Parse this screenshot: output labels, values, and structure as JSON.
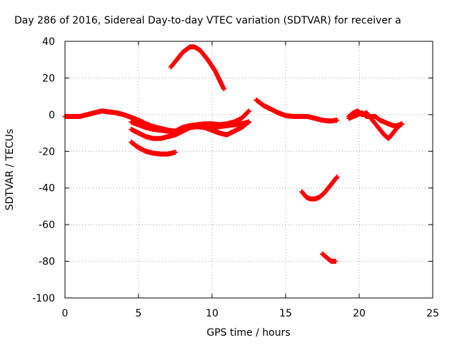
{
  "chart_data": {
    "type": "scatter",
    "title": "Day 286 of 2016, Sidereal Day-to-day VTEC variation (SDTVAR) for receiver a",
    "xlabel": "GPS time / hours",
    "ylabel": "SDTVAR / TECUs",
    "xlim": [
      0,
      25
    ],
    "ylim": [
      -100,
      40
    ],
    "xticks": [
      0,
      5,
      10,
      15,
      20,
      25
    ],
    "yticks": [
      -100,
      -80,
      -60,
      -40,
      -20,
      0,
      20,
      40
    ],
    "grid": true,
    "marker": "plus",
    "color": "#ff0000",
    "series": [
      {
        "x": [
          0,
          0.5,
          1,
          1.5,
          2,
          2.5,
          3,
          3.5,
          4,
          4.5,
          5,
          5.5,
          6,
          6.5,
          7,
          7.5,
          8,
          8.5,
          9,
          9.5,
          10,
          10.5,
          11,
          11.5,
          12,
          12.5
        ],
        "y": [
          -1,
          -1,
          -1,
          0,
          1,
          2,
          1.5,
          1,
          0,
          -1.5,
          -3,
          -5,
          -6.5,
          -7.5,
          -8.5,
          -9,
          -7,
          -6,
          -5.5,
          -5,
          -5,
          -5.5,
          -5,
          -4,
          -2,
          2
        ]
      },
      {
        "x": [
          4.5,
          5,
          5.5,
          6,
          6.5,
          7,
          7.5,
          8,
          8.5,
          9,
          9.5,
          10,
          10.5,
          11,
          11.5,
          12,
          12.5
        ],
        "y": [
          -8,
          -10,
          -12,
          -13,
          -13,
          -12,
          -11,
          -9,
          -7,
          -6,
          -6.5,
          -7,
          -6.5,
          -6,
          -5.5,
          -5,
          -4
        ]
      },
      {
        "x": [
          4.5,
          5,
          5.5,
          6,
          6.5,
          7,
          7.5,
          8,
          8.5,
          9,
          9.5,
          10,
          10.5,
          11,
          11.5,
          12,
          12.5
        ],
        "y": [
          -4,
          -5.5,
          -7,
          -8,
          -8.5,
          -9,
          -9,
          -8,
          -7,
          -6.5,
          -7,
          -8.5,
          -10,
          -11,
          -9,
          -7,
          -4
        ]
      },
      {
        "x": [
          4.5,
          5,
          5.5,
          6,
          6.5,
          7,
          7.5
        ],
        "y": [
          -15,
          -18,
          -20,
          -21,
          -21.5,
          -21.5,
          -20.5
        ]
      },
      {
        "x": [
          7.2,
          7.5,
          8,
          8.5,
          8.8,
          9.2,
          9.7,
          10.2,
          10.5,
          10.8
        ],
        "y": [
          26,
          29,
          34,
          37,
          37,
          35,
          30,
          24,
          19,
          14
        ]
      },
      {
        "x": [
          13,
          13.5,
          14,
          14.5,
          15,
          15.5,
          16,
          16.5,
          17,
          17.5,
          18,
          18.5
        ],
        "y": [
          8,
          5,
          3,
          1,
          -0.5,
          -1,
          -1,
          -1,
          -2,
          -3,
          -3.5,
          -3
        ]
      },
      {
        "x": [
          19.3,
          19.6,
          19.9,
          20.2,
          20.5,
          20.8,
          21.1,
          21.4,
          21.7,
          22,
          22.3,
          22.6,
          22.9
        ],
        "y": [
          -1,
          1,
          2,
          0,
          1,
          -2,
          -5,
          -8,
          -11,
          -13,
          -10,
          -7,
          -5
        ]
      },
      {
        "x": [
          19.3,
          19.6,
          19.9,
          20.2,
          20.5,
          20.8,
          21.1,
          21.4,
          21.7,
          22,
          22.3,
          22.6,
          22.9
        ],
        "y": [
          -2,
          -1,
          0,
          1,
          -1,
          -1,
          -1,
          -3,
          -4,
          -5,
          -6,
          -6,
          -5
        ]
      },
      {
        "x": [
          16.1,
          16.4,
          16.7,
          17,
          17.3,
          17.6,
          17.9,
          18.2,
          18.5
        ],
        "y": [
          -42,
          -45,
          -46,
          -46,
          -45,
          -43,
          -40,
          -37,
          -34
        ]
      },
      {
        "x": [
          17.5,
          17.8,
          18.1,
          18.4
        ],
        "y": [
          -76,
          -78,
          -80,
          -80
        ]
      }
    ]
  }
}
